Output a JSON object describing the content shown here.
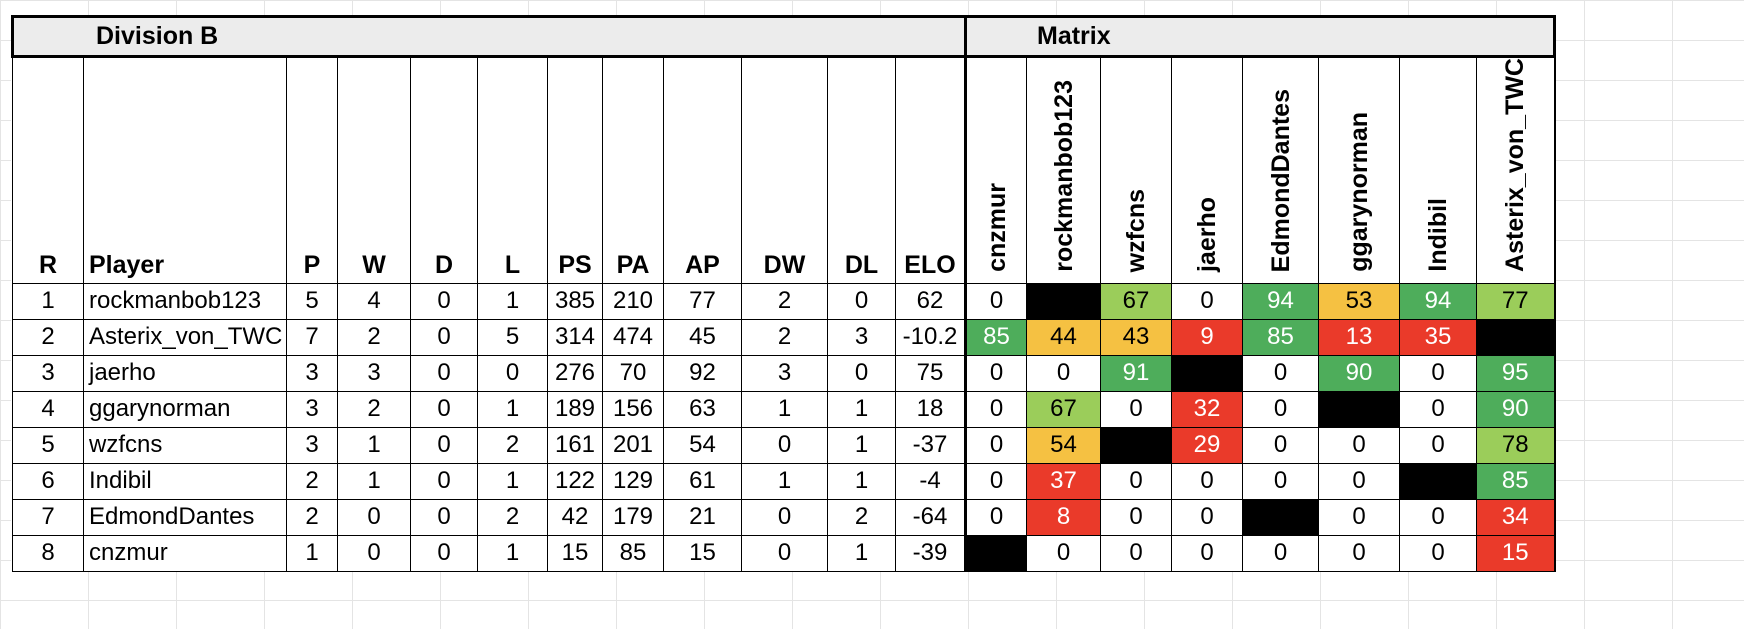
{
  "division_title": "Division B",
  "matrix_title": "Matrix",
  "columns": {
    "rank": "R",
    "player": "Player",
    "played": "P",
    "won": "W",
    "drawn": "D",
    "lost": "L",
    "ps": "PS",
    "pa": "PA",
    "ap": "AP",
    "dw": "DW",
    "dl": "DL",
    "elo": "ELO"
  },
  "matrix_columns": [
    "cnzmur",
    "rockmanbob123",
    "wzfcns",
    "jaerho",
    "EdmondDantes",
    "ggarynorman",
    "Indibil",
    "Asterix_von_TWC"
  ],
  "rows": [
    {
      "r": "1",
      "player": "rockmanbob123",
      "p": "5",
      "w": "4",
      "d": "0",
      "l": "1",
      "ps": "385",
      "pa": "210",
      "ap": "77",
      "dw": "2",
      "dl": "0",
      "elo": "62",
      "matrix": [
        {
          "v": "0",
          "c": "white"
        },
        {
          "v": "",
          "c": "black"
        },
        {
          "v": "67",
          "c": "lightgreen"
        },
        {
          "v": "0",
          "c": "white"
        },
        {
          "v": "94",
          "c": "green"
        },
        {
          "v": "53",
          "c": "amber"
        },
        {
          "v": "94",
          "c": "green"
        },
        {
          "v": "77",
          "c": "lightgreen"
        }
      ]
    },
    {
      "r": "2",
      "player": "Asterix_von_TWC",
      "p": "7",
      "w": "2",
      "d": "0",
      "l": "5",
      "ps": "314",
      "pa": "474",
      "ap": "45",
      "dw": "2",
      "dl": "3",
      "elo": "-10.2",
      "matrix": [
        {
          "v": "85",
          "c": "green"
        },
        {
          "v": "44",
          "c": "amber"
        },
        {
          "v": "43",
          "c": "amber"
        },
        {
          "v": "9",
          "c": "red"
        },
        {
          "v": "85",
          "c": "green"
        },
        {
          "v": "13",
          "c": "red"
        },
        {
          "v": "35",
          "c": "red"
        },
        {
          "v": "",
          "c": "black"
        }
      ]
    },
    {
      "r": "3",
      "player": "jaerho",
      "p": "3",
      "w": "3",
      "d": "0",
      "l": "0",
      "ps": "276",
      "pa": "70",
      "ap": "92",
      "dw": "3",
      "dl": "0",
      "elo": "75",
      "matrix": [
        {
          "v": "0",
          "c": "white"
        },
        {
          "v": "0",
          "c": "white"
        },
        {
          "v": "91",
          "c": "green"
        },
        {
          "v": "",
          "c": "black"
        },
        {
          "v": "0",
          "c": "white"
        },
        {
          "v": "90",
          "c": "green"
        },
        {
          "v": "0",
          "c": "white"
        },
        {
          "v": "95",
          "c": "green"
        }
      ]
    },
    {
      "r": "4",
      "player": "ggarynorman",
      "p": "3",
      "w": "2",
      "d": "0",
      "l": "1",
      "ps": "189",
      "pa": "156",
      "ap": "63",
      "dw": "1",
      "dl": "1",
      "elo": "18",
      "matrix": [
        {
          "v": "0",
          "c": "white"
        },
        {
          "v": "67",
          "c": "lightgreen"
        },
        {
          "v": "0",
          "c": "white"
        },
        {
          "v": "32",
          "c": "red"
        },
        {
          "v": "0",
          "c": "white"
        },
        {
          "v": "",
          "c": "black"
        },
        {
          "v": "0",
          "c": "white"
        },
        {
          "v": "90",
          "c": "green"
        }
      ]
    },
    {
      "r": "5",
      "player": "wzfcns",
      "p": "3",
      "w": "1",
      "d": "0",
      "l": "2",
      "ps": "161",
      "pa": "201",
      "ap": "54",
      "dw": "0",
      "dl": "1",
      "elo": "-37",
      "matrix": [
        {
          "v": "0",
          "c": "white"
        },
        {
          "v": "54",
          "c": "amber"
        },
        {
          "v": "",
          "c": "black"
        },
        {
          "v": "29",
          "c": "red"
        },
        {
          "v": "0",
          "c": "white"
        },
        {
          "v": "0",
          "c": "white"
        },
        {
          "v": "0",
          "c": "white"
        },
        {
          "v": "78",
          "c": "lightgreen"
        }
      ]
    },
    {
      "r": "6",
      "player": "Indibil",
      "p": "2",
      "w": "1",
      "d": "0",
      "l": "1",
      "ps": "122",
      "pa": "129",
      "ap": "61",
      "dw": "1",
      "dl": "1",
      "elo": "-4",
      "matrix": [
        {
          "v": "0",
          "c": "white"
        },
        {
          "v": "37",
          "c": "red"
        },
        {
          "v": "0",
          "c": "white"
        },
        {
          "v": "0",
          "c": "white"
        },
        {
          "v": "0",
          "c": "white"
        },
        {
          "v": "0",
          "c": "white"
        },
        {
          "v": "",
          "c": "black"
        },
        {
          "v": "85",
          "c": "green"
        }
      ]
    },
    {
      "r": "7",
      "player": "EdmondDantes",
      "p": "2",
      "w": "0",
      "d": "0",
      "l": "2",
      "ps": "42",
      "pa": "179",
      "ap": "21",
      "dw": "0",
      "dl": "2",
      "elo": "-64",
      "matrix": [
        {
          "v": "0",
          "c": "white"
        },
        {
          "v": "8",
          "c": "red"
        },
        {
          "v": "0",
          "c": "white"
        },
        {
          "v": "0",
          "c": "white"
        },
        {
          "v": "",
          "c": "black"
        },
        {
          "v": "0",
          "c": "white"
        },
        {
          "v": "0",
          "c": "white"
        },
        {
          "v": "34",
          "c": "red"
        }
      ]
    },
    {
      "r": "8",
      "player": "cnzmur",
      "p": "1",
      "w": "0",
      "d": "0",
      "l": "1",
      "ps": "15",
      "pa": "85",
      "ap": "15",
      "dw": "0",
      "dl": "1",
      "elo": "-39",
      "matrix": [
        {
          "v": "",
          "c": "black"
        },
        {
          "v": "0",
          "c": "white"
        },
        {
          "v": "0",
          "c": "white"
        },
        {
          "v": "0",
          "c": "white"
        },
        {
          "v": "0",
          "c": "white"
        },
        {
          "v": "0",
          "c": "white"
        },
        {
          "v": "0",
          "c": "white"
        },
        {
          "v": "15",
          "c": "red"
        }
      ]
    }
  ],
  "colors": {
    "green": "#4ead5b",
    "lightgreen": "#9bcd5a",
    "amber": "#f5c142",
    "red": "#ea3a2a",
    "black": "#000000"
  }
}
